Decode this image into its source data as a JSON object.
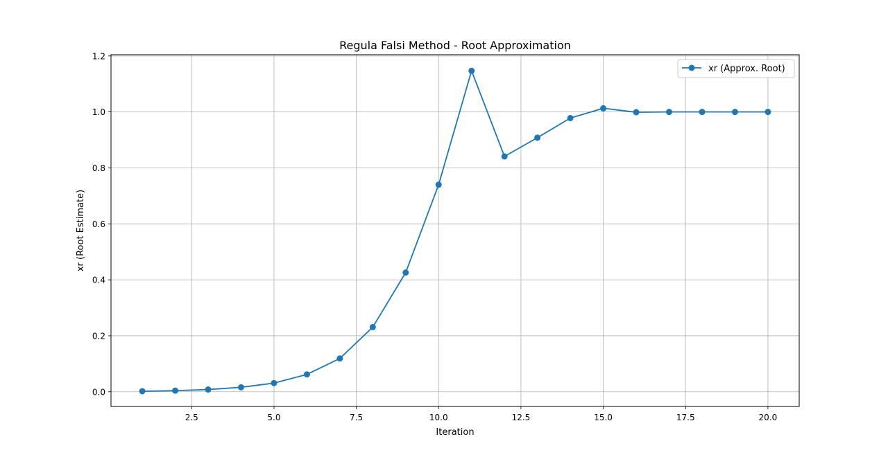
{
  "chart_data": {
    "type": "line",
    "title": "Regula Falsi Method - Root Approximation",
    "xlabel": "Iteration",
    "ylabel": "xr (Root Estimate)",
    "xlim": [
      0.05,
      20.95
    ],
    "ylim": [
      -0.0525,
      1.2045
    ],
    "xticks": [
      2.5,
      5.0,
      7.5,
      10.0,
      12.5,
      15.0,
      17.5,
      20.0
    ],
    "xtick_labels": [
      "2.5",
      "5.0",
      "7.5",
      "10.0",
      "12.5",
      "15.0",
      "17.5",
      "20.0"
    ],
    "yticks": [
      0.0,
      0.2,
      0.4,
      0.6,
      0.8,
      1.0,
      1.2
    ],
    "ytick_labels": [
      "0.0",
      "0.2",
      "0.4",
      "0.6",
      "0.8",
      "1.0",
      "1.2"
    ],
    "grid": true,
    "legend_position": "upper right",
    "series": [
      {
        "name": "xr (Approx. Root)",
        "color": "#1f77b4",
        "marker": "circle",
        "x": [
          1,
          2,
          3,
          4,
          5,
          6,
          7,
          8,
          9,
          10,
          11,
          12,
          13,
          14,
          15,
          16,
          17,
          18,
          19,
          20
        ],
        "y": [
          0.002,
          0.004,
          0.008,
          0.016,
          0.031,
          0.062,
          0.119,
          0.231,
          0.426,
          0.74,
          1.147,
          0.841,
          0.908,
          0.978,
          1.013,
          0.999,
          1.0,
          1.0,
          1.0,
          1.0
        ]
      }
    ]
  }
}
